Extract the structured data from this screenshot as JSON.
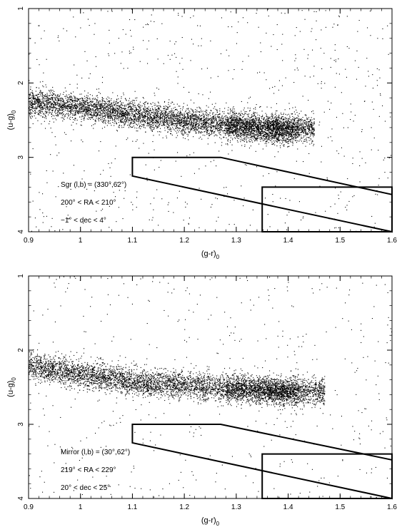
{
  "chart_data": [
    {
      "type": "scatter",
      "title": "",
      "xlabel": "(g-r)",
      "xlabel_sub": "0",
      "ylabel": "(u-g)",
      "ylabel_sub": "0",
      "xlim": [
        0.9,
        1.6
      ],
      "ylim": [
        4,
        1
      ],
      "y_inverted": true,
      "grid": false,
      "xticks": [
        "0.9",
        "1",
        "1.1",
        "1.2",
        "1.3",
        "1.4",
        "1.5",
        "1.6"
      ],
      "yticks": [
        "1",
        "2",
        "3",
        "4"
      ],
      "annotations": [
        {
          "text": "Sgr (l,b) = (330°,62°)"
        },
        {
          "text": "200° < RA < 210°"
        },
        {
          "text": "−1° < dec < 4°"
        }
      ],
      "selection_regions": [
        {
          "name": "parallelogram",
          "points": [
            [
              1.1,
              3.0
            ],
            [
              1.27,
              3.0
            ],
            [
              1.6,
              3.5
            ],
            [
              1.6,
              4.0
            ],
            [
              1.1,
              3.25
            ]
          ]
        },
        {
          "name": "box",
          "points": [
            [
              1.35,
              3.4
            ],
            [
              1.6,
              3.4
            ],
            [
              1.6,
              4.0
            ],
            [
              1.35,
              4.0
            ]
          ]
        }
      ],
      "distribution": {
        "locus_points": [
          [
            0.9,
            2.25
          ],
          [
            1.0,
            2.32
          ],
          [
            1.1,
            2.42
          ],
          [
            1.2,
            2.5
          ],
          [
            1.3,
            2.58
          ],
          [
            1.38,
            2.62
          ],
          [
            1.45,
            2.6
          ]
        ],
        "core_count": 6500,
        "field_count": 650
      }
    },
    {
      "type": "scatter",
      "title": "",
      "xlabel": "(g-r)",
      "xlabel_sub": "0",
      "ylabel": "(u-g)",
      "ylabel_sub": "0",
      "xlim": [
        0.9,
        1.6
      ],
      "ylim": [
        4,
        1
      ],
      "y_inverted": true,
      "grid": false,
      "xticks": [
        "0.9",
        "1",
        "1.1",
        "1.2",
        "1.3",
        "1.4",
        "1.5",
        "1.6"
      ],
      "yticks": [
        "1",
        "2",
        "3",
        "4"
      ],
      "annotations": [
        {
          "text": "Mirror (l,b) = (30°,62°)"
        },
        {
          "text": "219° < RA < 229°"
        },
        {
          "text": "20° < dec < 25°"
        }
      ],
      "selection_regions": [
        {
          "name": "parallelogram",
          "points": [
            [
              1.1,
              3.0
            ],
            [
              1.27,
              3.0
            ],
            [
              1.6,
              3.48
            ],
            [
              1.6,
              4.0
            ],
            [
              1.1,
              3.25
            ]
          ]
        },
        {
          "name": "box",
          "points": [
            [
              1.35,
              3.4
            ],
            [
              1.6,
              3.4
            ],
            [
              1.6,
              4.0
            ],
            [
              1.35,
              4.0
            ]
          ]
        }
      ],
      "distribution": {
        "locus_points": [
          [
            0.9,
            2.2
          ],
          [
            1.0,
            2.32
          ],
          [
            1.1,
            2.42
          ],
          [
            1.2,
            2.47
          ],
          [
            1.3,
            2.52
          ],
          [
            1.38,
            2.55
          ],
          [
            1.47,
            2.55
          ]
        ],
        "core_count": 6000,
        "field_count": 450
      }
    }
  ]
}
